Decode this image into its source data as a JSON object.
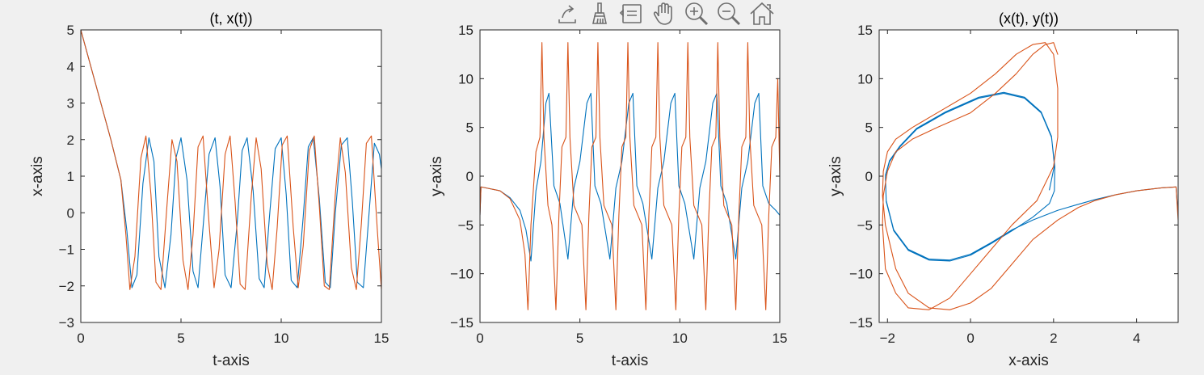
{
  "colors": {
    "blue": "#0072bd",
    "orange": "#d95319",
    "background": "#f0f0f0",
    "axes": "#262626"
  },
  "toolbar": {
    "items": [
      {
        "name": "export-icon",
        "label": "Export"
      },
      {
        "name": "brush-icon",
        "label": "Brush"
      },
      {
        "name": "datatips-icon",
        "label": "Data Tips"
      },
      {
        "name": "pan-icon",
        "label": "Pan"
      },
      {
        "name": "zoom-in-icon",
        "label": "Zoom In"
      },
      {
        "name": "zoom-out-icon",
        "label": "Zoom Out"
      },
      {
        "name": "home-icon",
        "label": "Restore View"
      }
    ]
  },
  "chart_data": [
    {
      "type": "line",
      "title": "(t, x(t))",
      "xlabel": "t-axis",
      "ylabel": "x-axis",
      "xlim": [
        0,
        15
      ],
      "ylim": [
        -3,
        5
      ],
      "xticks": [
        0,
        5,
        10,
        15
      ],
      "yticks": [
        -3,
        -2,
        -1,
        0,
        1,
        2,
        3,
        4,
        5
      ],
      "grid": false,
      "series": [
        {
          "color": "#0072bd",
          "x": [
            0,
            0.5,
            1,
            1.5,
            2,
            2.3,
            2.55,
            2.8,
            3.1,
            3.4,
            3.65,
            3.9,
            4.2,
            4.5,
            4.75,
            5.0,
            5.3,
            5.6,
            5.85,
            6.1,
            6.4,
            6.7,
            6.95,
            7.2,
            7.5,
            7.8,
            8.05,
            8.3,
            8.6,
            8.9,
            9.15,
            9.4,
            9.7,
            10.0,
            10.25,
            10.5,
            10.8,
            11.1,
            11.35,
            11.6,
            11.9,
            12.2,
            12.45,
            12.7,
            13.0,
            13.3,
            13.55,
            13.8,
            14.1,
            14.4,
            14.65,
            14.9,
            15.0
          ],
          "y": [
            5,
            4.0,
            3.0,
            2.0,
            0.9,
            -0.5,
            -2.05,
            -1.7,
            0.8,
            2.05,
            1.4,
            -1.2,
            -2.05,
            -0.6,
            1.5,
            2.05,
            0.9,
            -1.6,
            -2.05,
            -0.4,
            1.6,
            2.05,
            0.7,
            -1.7,
            -2.05,
            -0.3,
            1.7,
            2.05,
            0.6,
            -1.8,
            -2.05,
            -0.2,
            1.75,
            2.05,
            0.5,
            -1.85,
            -2.05,
            -0.1,
            1.8,
            2.05,
            0.4,
            -1.9,
            -2.05,
            0.0,
            1.85,
            2.05,
            0.3,
            -1.9,
            -2.05,
            0.1,
            1.9,
            1.6,
            1.2
          ]
        },
        {
          "color": "#d95319",
          "x": [
            0,
            0.5,
            1,
            1.5,
            2,
            2.25,
            2.45,
            2.7,
            3.0,
            3.25,
            3.5,
            3.75,
            4.0,
            4.3,
            4.55,
            4.8,
            5.1,
            5.35,
            5.6,
            5.85,
            6.1,
            6.4,
            6.65,
            6.9,
            7.2,
            7.45,
            7.7,
            7.95,
            8.2,
            8.5,
            8.75,
            9.0,
            9.3,
            9.55,
            9.8,
            10.05,
            10.3,
            10.6,
            10.85,
            11.1,
            11.4,
            11.65,
            11.9,
            12.15,
            12.4,
            12.7,
            12.95,
            13.2,
            13.5,
            13.75,
            14.0,
            14.25,
            14.5,
            14.8,
            15.0
          ],
          "y": [
            5,
            4.0,
            3.0,
            2.0,
            0.9,
            -0.6,
            -2.1,
            -1.2,
            1.5,
            2.1,
            0.5,
            -1.9,
            -2.1,
            0.2,
            2.0,
            1.4,
            -1.3,
            -2.1,
            -0.6,
            1.8,
            2.1,
            -0.3,
            -2.05,
            -1.0,
            1.6,
            2.1,
            0.3,
            -1.95,
            -2.1,
            0.4,
            2.05,
            1.2,
            -1.4,
            -2.1,
            -0.4,
            1.85,
            2.1,
            -0.4,
            -2.05,
            -0.9,
            1.7,
            2.1,
            0.2,
            -2.0,
            -2.1,
            0.5,
            2.05,
            1.1,
            -1.5,
            -2.1,
            -0.3,
            1.9,
            2.1,
            -0.5,
            -2.1
          ]
        }
      ]
    },
    {
      "type": "line",
      "title": "",
      "xlabel": "t-axis",
      "ylabel": "y-axis",
      "xlim": [
        0,
        15
      ],
      "ylim": [
        -15,
        15
      ],
      "xticks": [
        0,
        5,
        10,
        15
      ],
      "yticks": [
        -15,
        -10,
        -5,
        0,
        5,
        10,
        15
      ],
      "grid": false,
      "series": [
        {
          "color": "#0072bd",
          "x": [
            0,
            0.05,
            0.3,
            1,
            1.5,
            2.0,
            2.3,
            2.55,
            2.8,
            3.05,
            3.3,
            3.45,
            3.7,
            4.0,
            4.4,
            4.7,
            5.0,
            5.35,
            5.55,
            5.75,
            6.05,
            6.5,
            6.8,
            7.1,
            7.45,
            7.65,
            7.85,
            8.15,
            8.6,
            8.9,
            9.2,
            9.55,
            9.75,
            9.95,
            10.25,
            10.7,
            11.0,
            11.3,
            11.65,
            11.85,
            12.05,
            12.35,
            12.8,
            13.1,
            13.4,
            13.75,
            13.95,
            14.15,
            14.45,
            14.8,
            15.0
          ],
          "y": [
            -4,
            -1.1,
            -1.2,
            -1.5,
            -2.2,
            -3.5,
            -5.5,
            -8.7,
            -1.5,
            1.5,
            7.5,
            8.5,
            -1.0,
            -2.8,
            -8.5,
            -1.2,
            1.5,
            7.5,
            8.5,
            -1.0,
            -2.8,
            -8.5,
            -1.2,
            1.5,
            7.5,
            8.5,
            -1.0,
            -2.8,
            -8.5,
            -1.2,
            1.5,
            7.5,
            8.5,
            -1.0,
            -2.8,
            -8.5,
            -1.2,
            1.5,
            7.5,
            8.5,
            -1.0,
            -2.8,
            -8.5,
            -1.2,
            1.5,
            7.5,
            8.5,
            -1.0,
            -2.8,
            -3.5,
            -4
          ]
        },
        {
          "color": "#d95319",
          "x": [
            0,
            0.05,
            0.3,
            1,
            1.5,
            2.0,
            2.25,
            2.4,
            2.55,
            2.8,
            3.0,
            3.1,
            3.2,
            3.4,
            3.6,
            3.8,
            3.95,
            4.1,
            4.3,
            4.4,
            4.5,
            4.7,
            5.1,
            5.3,
            5.45,
            5.6,
            5.8,
            5.9,
            6.0,
            6.2,
            6.6,
            6.8,
            6.95,
            7.1,
            7.3,
            7.4,
            7.5,
            7.7,
            8.1,
            8.3,
            8.45,
            8.6,
            8.8,
            8.9,
            9.0,
            9.2,
            9.6,
            9.8,
            9.95,
            10.1,
            10.3,
            10.4,
            10.5,
            10.7,
            11.1,
            11.3,
            11.45,
            11.6,
            11.8,
            11.9,
            12.0,
            12.2,
            12.6,
            12.8,
            12.95,
            13.1,
            13.3,
            13.4,
            13.5,
            13.7,
            14.1,
            14.3,
            14.45,
            14.6,
            14.8,
            14.9,
            15.0
          ],
          "y": [
            -4,
            -1.1,
            -1.2,
            -1.5,
            -2.3,
            -4.5,
            -8,
            -13.7,
            -5,
            2.5,
            4,
            13.7,
            4,
            -3,
            -5,
            -13.7,
            -4,
            3,
            4,
            13.7,
            4,
            -3,
            -5,
            -13.7,
            -4,
            3,
            4,
            13.7,
            4,
            -3,
            -5,
            -13.7,
            -4,
            3,
            4,
            13.7,
            4,
            -3,
            -5,
            -13.7,
            -4,
            3,
            4,
            13.7,
            4,
            -3,
            -5,
            -13.7,
            -4,
            3,
            4,
            13.7,
            4,
            -3,
            -5,
            -13.7,
            -4,
            3,
            4,
            13.7,
            4,
            -3,
            -5,
            -13.7,
            -4,
            3,
            4,
            13.7,
            4,
            -3,
            -5,
            -13.7,
            -4,
            3,
            4,
            10,
            0
          ]
        }
      ]
    },
    {
      "type": "line",
      "title": "(x(t), y(t))",
      "xlabel": "x-axis",
      "ylabel": "y-axis",
      "xlim": [
        -2.2,
        5
      ],
      "ylim": [
        -15,
        15
      ],
      "xticks": [
        -2,
        0,
        2,
        4
      ],
      "yticks": [
        -15,
        -10,
        -5,
        0,
        5,
        10,
        15
      ],
      "grid": false,
      "series": [
        {
          "color": "#0072bd",
          "x": [
            5,
            4.95,
            4.6,
            4.0,
            3.5,
            3.0,
            2.5,
            2.1,
            1.5,
            1.0,
            0.5,
            0,
            -0.5,
            -1.0,
            -1.5,
            -1.85,
            -2.03,
            -2.05,
            -1.95,
            -1.7,
            -1.3,
            -0.6,
            0.2,
            0.8,
            1.3,
            1.7,
            1.95,
            2.03,
            2.02,
            1.9,
            1.5,
            1.0,
            0.5,
            0,
            -0.5,
            -1.0,
            -1.5,
            -1.85,
            -2.03,
            -2.05,
            -1.95,
            -1.7,
            -1.3,
            -0.6,
            0.2,
            0.8,
            1.3,
            1.7,
            1.95,
            2.02,
            1.9
          ],
          "y": [
            -4,
            -1.1,
            -1.2,
            -1.5,
            -1.9,
            -2.4,
            -3.0,
            -3.5,
            -4.5,
            -5.5,
            -6.8,
            -8.0,
            -8.6,
            -8.5,
            -7.5,
            -5.5,
            -2.5,
            0,
            1.5,
            3.0,
            4.8,
            6.5,
            8.0,
            8.5,
            8.0,
            6.5,
            4.0,
            1.0,
            -1.5,
            -2.8,
            -4.2,
            -5.6,
            -6.9,
            -8.1,
            -8.7,
            -8.6,
            -7.6,
            -5.6,
            -2.6,
            0.1,
            1.6,
            3.1,
            4.9,
            6.6,
            8.1,
            8.6,
            8.1,
            6.6,
            4.1,
            1.1,
            -1.4
          ]
        },
        {
          "color": "#d95319",
          "x": [
            5,
            4.95,
            4.6,
            4.0,
            3.5,
            3.0,
            2.6,
            2.1,
            1.5,
            1.0,
            0.5,
            0,
            -0.5,
            -1.0,
            -1.5,
            -1.8,
            -2.05,
            -2.12,
            -2.1,
            -2.0,
            -1.8,
            -1.4,
            -0.8,
            0,
            0.6,
            1.1,
            1.5,
            1.8,
            2.0,
            2.1,
            2.1,
            2.0,
            1.6,
            1.0,
            0.5,
            0,
            -0.5,
            -1.0,
            -1.5,
            -1.8,
            -2.05,
            -2.12,
            -2.1,
            -2.0,
            -1.8,
            -1.4,
            -0.8,
            0,
            0.6,
            1.1,
            1.5,
            1.8,
            2.0,
            2.1
          ],
          "y": [
            -4.5,
            -1.1,
            -1.2,
            -1.5,
            -1.9,
            -2.5,
            -3.2,
            -4.5,
            -6.5,
            -9.0,
            -11.5,
            -13.0,
            -13.7,
            -13.5,
            -12.0,
            -9.5,
            -5.0,
            -2.0,
            0.5,
            2.5,
            3.8,
            5.0,
            6.5,
            8.5,
            10.5,
            12.5,
            13.5,
            13.7,
            12.5,
            9.0,
            4.0,
            1.0,
            -2.5,
            -5.0,
            -7.5,
            -10.0,
            -12.5,
            -13.7,
            -13.5,
            -12.0,
            -9.5,
            -5.0,
            -2.0,
            0.5,
            2.5,
            3.8,
            5.0,
            6.5,
            8.5,
            10.5,
            12.5,
            13.5,
            13.7,
            12.5
          ]
        }
      ]
    }
  ]
}
